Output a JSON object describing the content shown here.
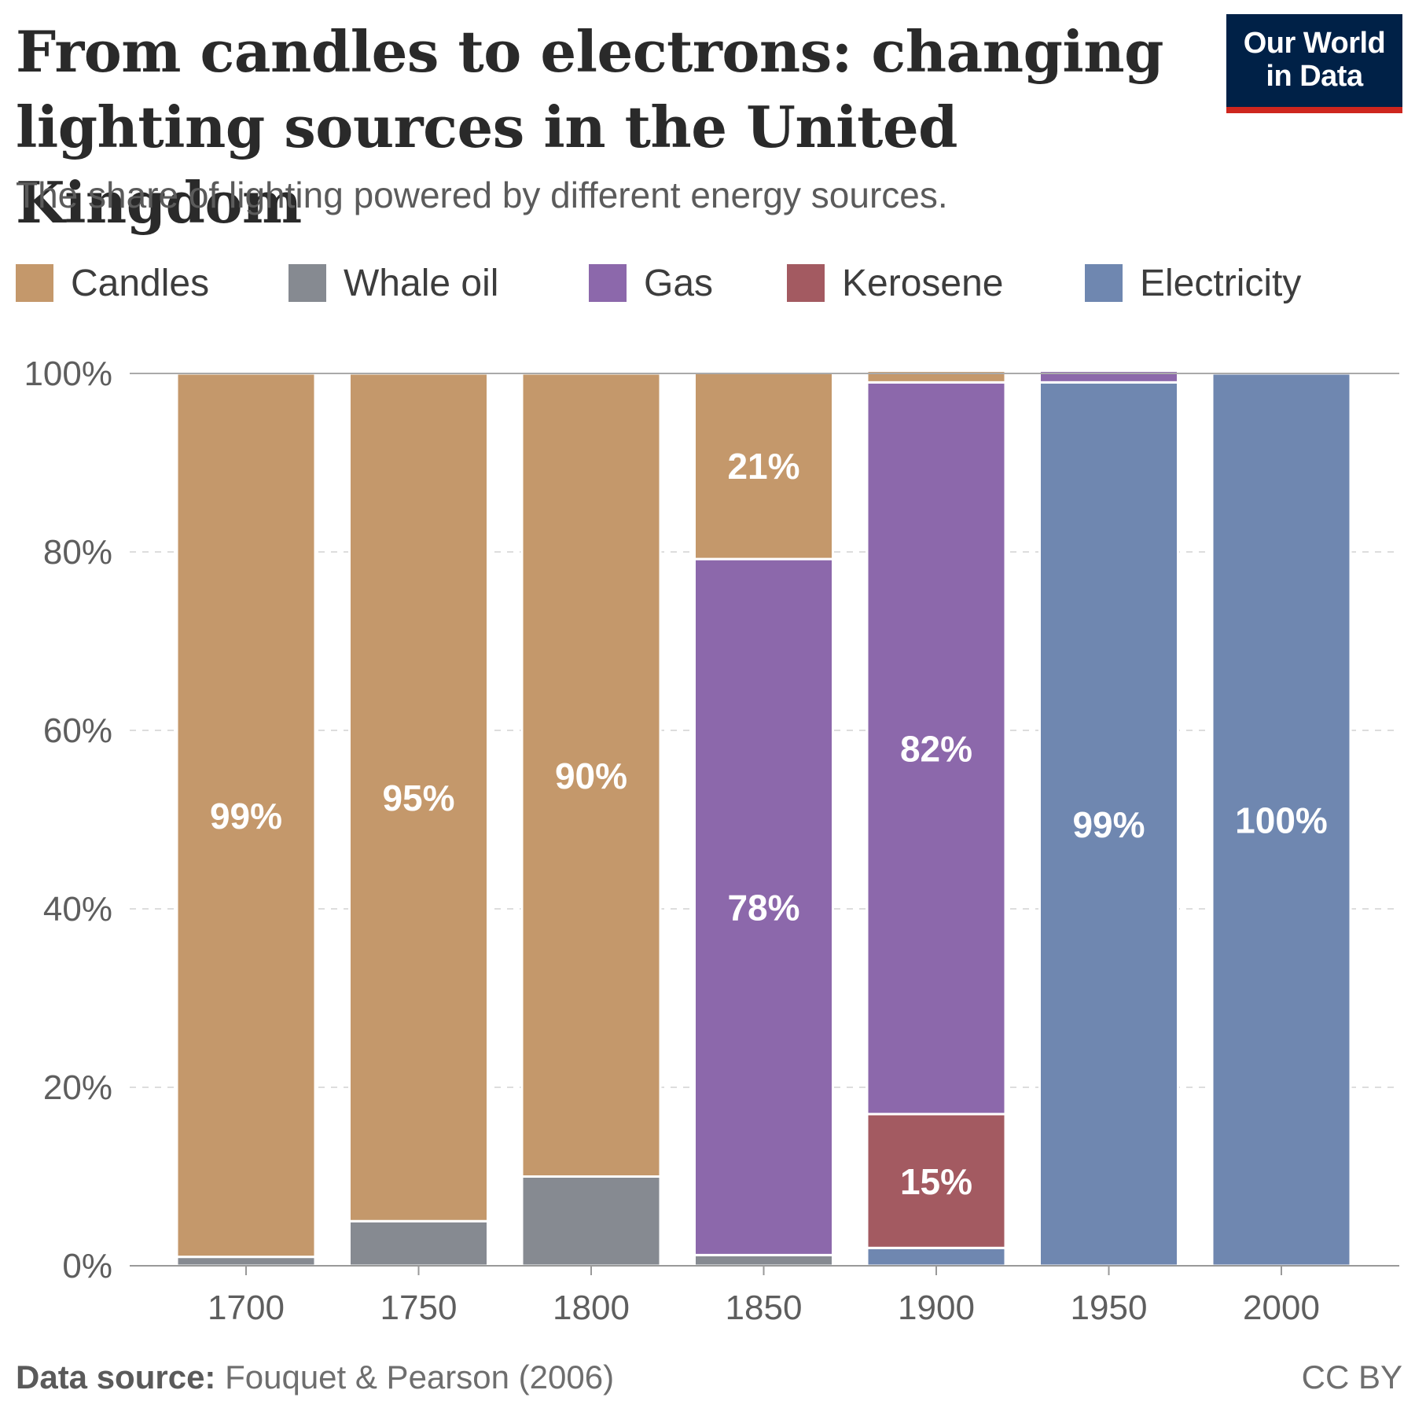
{
  "header": {
    "title": "From candles to electrons: changing lighting sources in the United Kingdom",
    "subtitle": "The share of lighting powered by different energy sources."
  },
  "logo": {
    "line1": "Our World",
    "line2": "in Data",
    "bg_color": "#002147",
    "accent_color": "#ce261e"
  },
  "footer": {
    "source_label": "Data source:",
    "source_text": "Fouquet & Pearson (2006)",
    "license": "CC BY"
  },
  "chart_data": {
    "type": "bar",
    "stacked": true,
    "title": "From candles to electrons: changing lighting sources in the United Kingdom",
    "subtitle": "The share of lighting powered by different energy sources.",
    "xlabel": "",
    "ylabel": "",
    "ylim": [
      0,
      100
    ],
    "y_ticks": [
      0,
      20,
      40,
      60,
      80,
      100
    ],
    "y_tick_labels": [
      "0%",
      "20%",
      "40%",
      "60%",
      "80%",
      "100%"
    ],
    "grid": true,
    "legend_position": "top",
    "categories": [
      "1700",
      "1750",
      "1800",
      "1850",
      "1900",
      "1950",
      "2000"
    ],
    "stack_order": [
      "Electricity",
      "Kerosene",
      "Whale oil",
      "Gas",
      "Candles"
    ],
    "series": [
      {
        "name": "Candles",
        "color": "#c4986b",
        "values": [
          99,
          95,
          90,
          21,
          1.3,
          0,
          0
        ]
      },
      {
        "name": "Whale oil",
        "color": "#868a91",
        "values": [
          1,
          5,
          10,
          1.2,
          0,
          0,
          0
        ]
      },
      {
        "name": "Gas",
        "color": "#8c68ab",
        "values": [
          0,
          0,
          0,
          78,
          82,
          1.3,
          0
        ]
      },
      {
        "name": "Kerosene",
        "color": "#a35a61",
        "values": [
          0,
          0,
          0,
          0,
          15,
          0,
          0
        ]
      },
      {
        "name": "Electricity",
        "color": "#6f87b0",
        "values": [
          0,
          0,
          0,
          0,
          2,
          99,
          100
        ]
      }
    ],
    "data_labels": [
      {
        "category": "1700",
        "series": "Candles",
        "text": "99%"
      },
      {
        "category": "1750",
        "series": "Candles",
        "text": "95%"
      },
      {
        "category": "1800",
        "series": "Candles",
        "text": "90%"
      },
      {
        "category": "1850",
        "series": "Candles",
        "text": "21%"
      },
      {
        "category": "1850",
        "series": "Gas",
        "text": "78%"
      },
      {
        "category": "1900",
        "series": "Gas",
        "text": "82%"
      },
      {
        "category": "1900",
        "series": "Kerosene",
        "text": "15%"
      },
      {
        "category": "1950",
        "series": "Electricity",
        "text": "99%"
      },
      {
        "category": "2000",
        "series": "Electricity",
        "text": "100%"
      }
    ]
  }
}
